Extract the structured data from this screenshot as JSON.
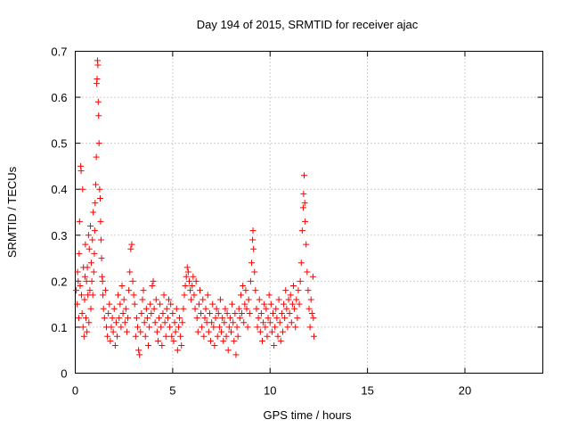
{
  "chart_data": {
    "type": "scatter",
    "title": "Day 194 of 2015, SRMTID for receiver ajac",
    "xlabel": "GPS time / hours",
    "ylabel": "SRMTID / TECUs",
    "xlim": [
      0,
      24
    ],
    "ylim": [
      0,
      0.7
    ],
    "xticks": [
      0,
      5,
      10,
      15,
      20
    ],
    "yticks": [
      0,
      0.1,
      0.2,
      0.3,
      0.4,
      0.5,
      0.6,
      0.7
    ],
    "grid": true,
    "marker": "+",
    "color": "#ff0000",
    "series": [
      {
        "name": "SRMTID",
        "points": [
          [
            0.05,
            0.18
          ],
          [
            0.1,
            0.15
          ],
          [
            0.12,
            0.22
          ],
          [
            0.15,
            0.2
          ],
          [
            0.18,
            0.12
          ],
          [
            0.2,
            0.26
          ],
          [
            0.22,
            0.33
          ],
          [
            0.25,
            0.19
          ],
          [
            0.28,
            0.45
          ],
          [
            0.3,
            0.44
          ],
          [
            0.32,
            0.17
          ],
          [
            0.35,
            0.13
          ],
          [
            0.38,
            0.4
          ],
          [
            0.4,
            0.1
          ],
          [
            0.42,
            0.23
          ],
          [
            0.45,
            0.08
          ],
          [
            0.48,
            0.16
          ],
          [
            0.5,
            0.21
          ],
          [
            0.52,
            0.28
          ],
          [
            0.55,
            0.12
          ],
          [
            0.58,
            0.2
          ],
          [
            0.6,
            0.09
          ],
          [
            0.62,
            0.23
          ],
          [
            0.65,
            0.17
          ],
          [
            0.68,
            0.3
          ],
          [
            0.7,
            0.11
          ],
          [
            0.72,
            0.27
          ],
          [
            0.75,
            0.18
          ],
          [
            0.78,
            0.32
          ],
          [
            0.8,
            0.14
          ],
          [
            0.82,
            0.24
          ],
          [
            0.85,
            0.2
          ],
          [
            0.88,
            0.29
          ],
          [
            0.9,
            0.17
          ],
          [
            0.92,
            0.35
          ],
          [
            0.95,
            0.22
          ],
          [
            0.98,
            0.26
          ],
          [
            1.0,
            0.31
          ],
          [
            1.02,
            0.37
          ],
          [
            1.05,
            0.41
          ],
          [
            1.08,
            0.47
          ],
          [
            1.1,
            0.63
          ],
          [
            1.12,
            0.64
          ],
          [
            1.14,
            0.68
          ],
          [
            1.16,
            0.67
          ],
          [
            1.18,
            0.59
          ],
          [
            1.2,
            0.56
          ],
          [
            1.22,
            0.5
          ],
          [
            1.25,
            0.4
          ],
          [
            1.28,
            0.38
          ],
          [
            1.3,
            0.33
          ],
          [
            1.32,
            0.29
          ],
          [
            1.35,
            0.25
          ],
          [
            1.38,
            0.21
          ],
          [
            1.4,
            0.2
          ],
          [
            1.42,
            0.17
          ],
          [
            1.45,
            0.14
          ],
          [
            1.5,
            0.12
          ],
          [
            1.55,
            0.18
          ],
          [
            1.6,
            0.1
          ],
          [
            1.65,
            0.08
          ],
          [
            1.7,
            0.13
          ],
          [
            1.75,
            0.15
          ],
          [
            1.8,
            0.07
          ],
          [
            1.85,
            0.1
          ],
          [
            1.9,
            0.12
          ],
          [
            1.95,
            0.09
          ],
          [
            2.0,
            0.14
          ],
          [
            2.05,
            0.06
          ],
          [
            2.1,
            0.11
          ],
          [
            2.15,
            0.08
          ],
          [
            2.2,
            0.17
          ],
          [
            2.25,
            0.12
          ],
          [
            2.3,
            0.15
          ],
          [
            2.35,
            0.1
          ],
          [
            2.4,
            0.19
          ],
          [
            2.45,
            0.13
          ],
          [
            2.5,
            0.16
          ],
          [
            2.55,
            0.11
          ],
          [
            2.6,
            0.14
          ],
          [
            2.65,
            0.09
          ],
          [
            2.7,
            0.12
          ],
          [
            2.75,
            0.18
          ],
          [
            2.8,
            0.22
          ],
          [
            2.85,
            0.27
          ],
          [
            2.9,
            0.28
          ],
          [
            2.95,
            0.2
          ],
          [
            3.0,
            0.17
          ],
          [
            3.05,
            0.15
          ],
          [
            3.1,
            0.08
          ],
          [
            3.15,
            0.12
          ],
          [
            3.2,
            0.1
          ],
          [
            3.25,
            0.05
          ],
          [
            3.3,
            0.04
          ],
          [
            3.35,
            0.09
          ],
          [
            3.4,
            0.13
          ],
          [
            3.45,
            0.16
          ],
          [
            3.5,
            0.18
          ],
          [
            3.55,
            0.11
          ],
          [
            3.6,
            0.08
          ],
          [
            3.65,
            0.14
          ],
          [
            3.7,
            0.12
          ],
          [
            3.75,
            0.06
          ],
          [
            3.8,
            0.1
          ],
          [
            3.85,
            0.15
          ],
          [
            3.9,
            0.13
          ],
          [
            3.95,
            0.19
          ],
          [
            4.0,
            0.2
          ],
          [
            4.05,
            0.14
          ],
          [
            4.1,
            0.11
          ],
          [
            4.15,
            0.16
          ],
          [
            4.2,
            0.09
          ],
          [
            4.25,
            0.07
          ],
          [
            4.3,
            0.12
          ],
          [
            4.35,
            0.15
          ],
          [
            4.4,
            0.1
          ],
          [
            4.45,
            0.06
          ],
          [
            4.5,
            0.13
          ],
          [
            4.55,
            0.17
          ],
          [
            4.6,
            0.11
          ],
          [
            4.65,
            0.08
          ],
          [
            4.7,
            0.14
          ],
          [
            4.75,
            0.12
          ],
          [
            4.8,
            0.16
          ],
          [
            4.85,
            0.1
          ],
          [
            4.9,
            0.15
          ],
          [
            4.95,
            0.08
          ],
          [
            5.0,
            0.13
          ],
          [
            5.05,
            0.07
          ],
          [
            5.1,
            0.11
          ],
          [
            5.15,
            0.09
          ],
          [
            5.2,
            0.14
          ],
          [
            5.25,
            0.05
          ],
          [
            5.3,
            0.1
          ],
          [
            5.35,
            0.12
          ],
          [
            5.4,
            0.08
          ],
          [
            5.45,
            0.06
          ],
          [
            5.5,
            0.11
          ],
          [
            5.55,
            0.14
          ],
          [
            5.6,
            0.17
          ],
          [
            5.65,
            0.19
          ],
          [
            5.7,
            0.21
          ],
          [
            5.75,
            0.23
          ],
          [
            5.8,
            0.22
          ],
          [
            5.85,
            0.2
          ],
          [
            5.9,
            0.18
          ],
          [
            5.95,
            0.16
          ],
          [
            6.0,
            0.19
          ],
          [
            6.05,
            0.21
          ],
          [
            6.1,
            0.17
          ],
          [
            6.15,
            0.14
          ],
          [
            6.2,
            0.2
          ],
          [
            6.25,
            0.12
          ],
          [
            6.3,
            0.09
          ],
          [
            6.35,
            0.15
          ],
          [
            6.4,
            0.18
          ],
          [
            6.45,
            0.13
          ],
          [
            6.5,
            0.1
          ],
          [
            6.55,
            0.16
          ],
          [
            6.6,
            0.08
          ],
          [
            6.65,
            0.12
          ],
          [
            6.7,
            0.14
          ],
          [
            6.75,
            0.11
          ],
          [
            6.8,
            0.17
          ],
          [
            6.85,
            0.09
          ],
          [
            6.9,
            0.13
          ],
          [
            6.95,
            0.07
          ],
          [
            7.0,
            0.11
          ],
          [
            7.05,
            0.15
          ],
          [
            7.1,
            0.1
          ],
          [
            7.15,
            0.06
          ],
          [
            7.2,
            0.12
          ],
          [
            7.25,
            0.14
          ],
          [
            7.3,
            0.08
          ],
          [
            7.35,
            0.13
          ],
          [
            7.4,
            0.1
          ],
          [
            7.45,
            0.16
          ],
          [
            7.5,
            0.09
          ],
          [
            7.55,
            0.12
          ],
          [
            7.6,
            0.07
          ],
          [
            7.65,
            0.11
          ],
          [
            7.7,
            0.14
          ],
          [
            7.75,
            0.08
          ],
          [
            7.8,
            0.13
          ],
          [
            7.85,
            0.05
          ],
          [
            7.9,
            0.1
          ],
          [
            7.95,
            0.12
          ],
          [
            8.0,
            0.09
          ],
          [
            8.05,
            0.15
          ],
          [
            8.1,
            0.11
          ],
          [
            8.15,
            0.07
          ],
          [
            8.2,
            0.13
          ],
          [
            8.25,
            0.04
          ],
          [
            8.3,
            0.1
          ],
          [
            8.35,
            0.08
          ],
          [
            8.4,
            0.14
          ],
          [
            8.45,
            0.12
          ],
          [
            8.5,
            0.17
          ],
          [
            8.55,
            0.13
          ],
          [
            8.6,
            0.19
          ],
          [
            8.65,
            0.11
          ],
          [
            8.7,
            0.15
          ],
          [
            8.75,
            0.18
          ],
          [
            8.8,
            0.14
          ],
          [
            8.85,
            0.1
          ],
          [
            8.9,
            0.16
          ],
          [
            8.95,
            0.13
          ],
          [
            9.0,
            0.2
          ],
          [
            9.05,
            0.24
          ],
          [
            9.1,
            0.29
          ],
          [
            9.12,
            0.31
          ],
          [
            9.15,
            0.27
          ],
          [
            9.2,
            0.22
          ],
          [
            9.25,
            0.18
          ],
          [
            9.3,
            0.14
          ],
          [
            9.35,
            0.1
          ],
          [
            9.4,
            0.12
          ],
          [
            9.45,
            0.16
          ],
          [
            9.5,
            0.09
          ],
          [
            9.55,
            0.13
          ],
          [
            9.6,
            0.07
          ],
          [
            9.65,
            0.11
          ],
          [
            9.7,
            0.15
          ],
          [
            9.75,
            0.1
          ],
          [
            9.8,
            0.14
          ],
          [
            9.85,
            0.08
          ],
          [
            9.9,
            0.12
          ],
          [
            9.95,
            0.17
          ],
          [
            10.0,
            0.11
          ],
          [
            10.05,
            0.15
          ],
          [
            10.1,
            0.09
          ],
          [
            10.15,
            0.13
          ],
          [
            10.2,
            0.06
          ],
          [
            10.25,
            0.1
          ],
          [
            10.3,
            0.14
          ],
          [
            10.35,
            0.12
          ],
          [
            10.4,
            0.08
          ],
          [
            10.45,
            0.16
          ],
          [
            10.5,
            0.11
          ],
          [
            10.55,
            0.07
          ],
          [
            10.6,
            0.13
          ],
          [
            10.65,
            0.09
          ],
          [
            10.7,
            0.15
          ],
          [
            10.75,
            0.12
          ],
          [
            10.8,
            0.18
          ],
          [
            10.85,
            0.14
          ],
          [
            10.9,
            0.1
          ],
          [
            10.95,
            0.16
          ],
          [
            11.0,
            0.13
          ],
          [
            11.05,
            0.17
          ],
          [
            11.1,
            0.11
          ],
          [
            11.15,
            0.15
          ],
          [
            11.2,
            0.19
          ],
          [
            11.25,
            0.14
          ],
          [
            11.3,
            0.1
          ],
          [
            11.35,
            0.16
          ],
          [
            11.4,
            0.12
          ],
          [
            11.45,
            0.18
          ],
          [
            11.5,
            0.15
          ],
          [
            11.55,
            0.2
          ],
          [
            11.6,
            0.24
          ],
          [
            11.65,
            0.31
          ],
          [
            11.7,
            0.36
          ],
          [
            11.72,
            0.39
          ],
          [
            11.75,
            0.43
          ],
          [
            11.78,
            0.37
          ],
          [
            11.8,
            0.33
          ],
          [
            11.85,
            0.28
          ],
          [
            11.9,
            0.22
          ],
          [
            11.95,
            0.18
          ],
          [
            12.0,
            0.14
          ],
          [
            12.05,
            0.1
          ],
          [
            12.1,
            0.16
          ],
          [
            12.15,
            0.13
          ],
          [
            12.2,
            0.21
          ],
          [
            12.22,
            0.12
          ],
          [
            12.25,
            0.08
          ]
        ]
      }
    ]
  }
}
